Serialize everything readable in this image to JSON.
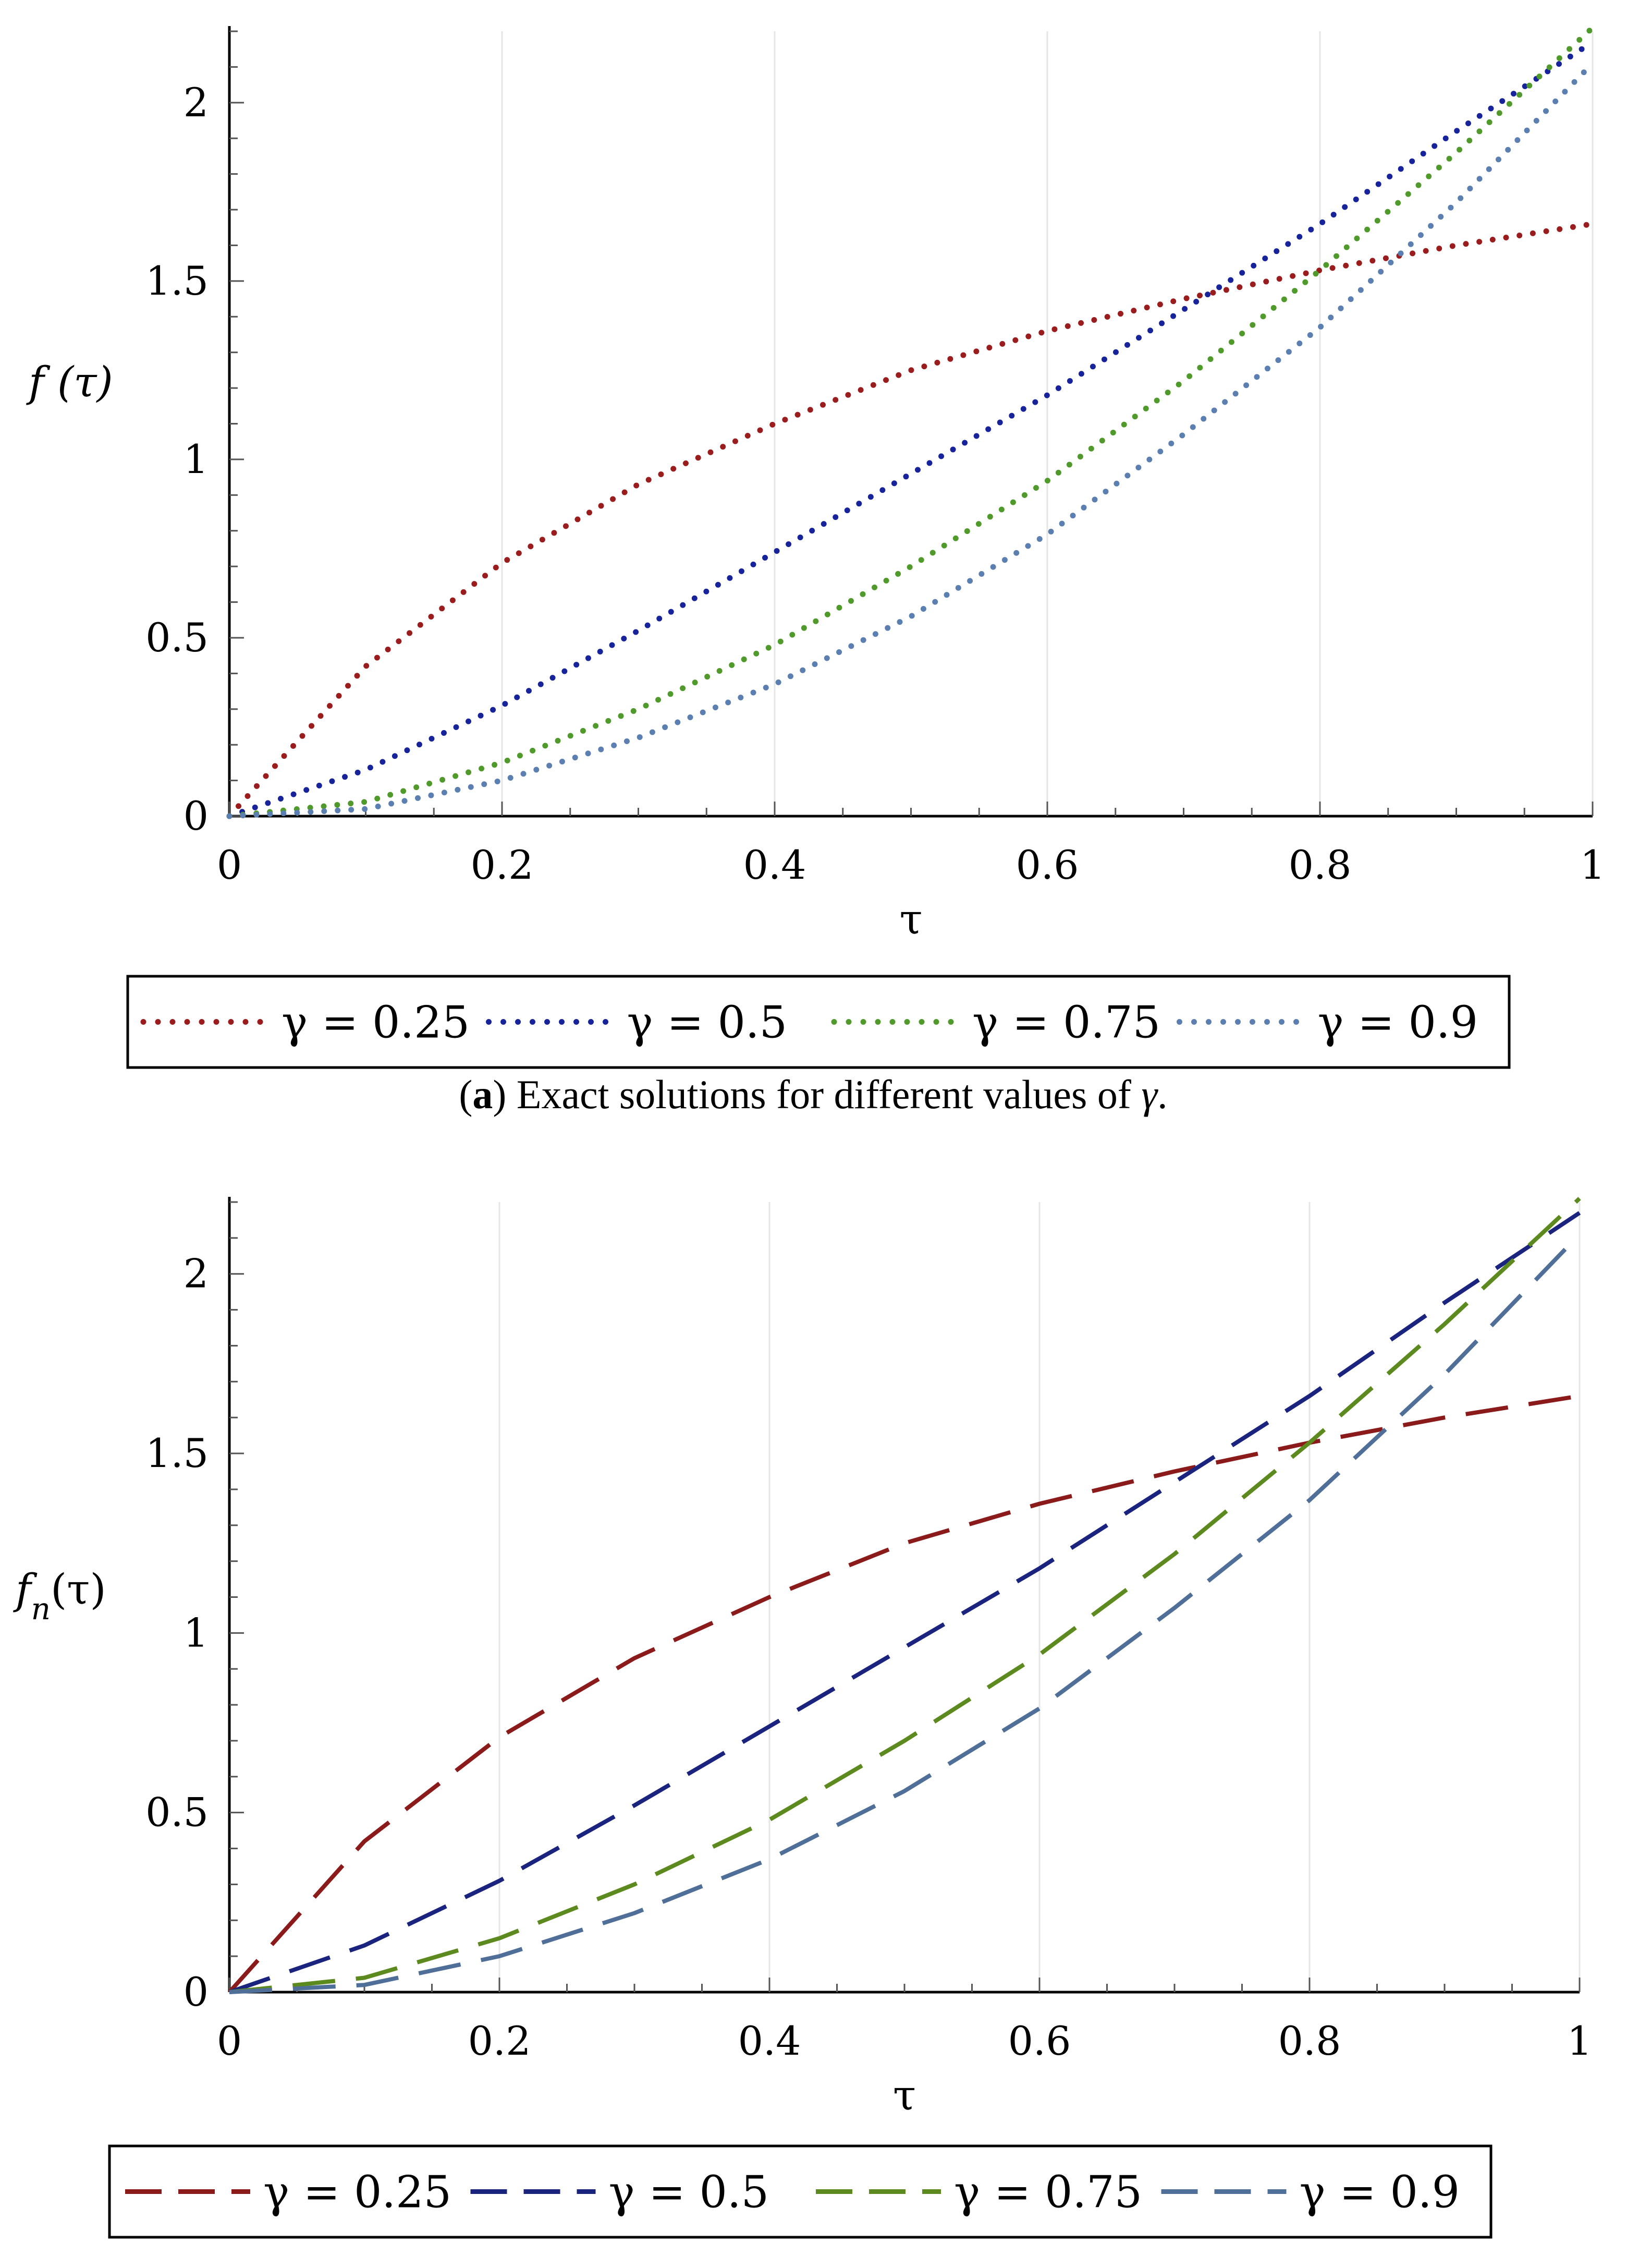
{
  "chart_data": [
    {
      "type": "line",
      "style": "dotted",
      "ylabel": "f (τ)",
      "xlabel": "τ",
      "xlim": [
        0,
        1
      ],
      "ylim": [
        0,
        2.2
      ],
      "x_ticks": [
        "0",
        "0.2",
        "0.4",
        "0.6",
        "0.8",
        "1"
      ],
      "y_ticks": [
        "0",
        "0.5",
        "1",
        "1.5",
        "2"
      ],
      "x": [
        0,
        0.1,
        0.2,
        0.3,
        0.4,
        0.5,
        0.6,
        0.7,
        0.8,
        0.9,
        1
      ],
      "series": [
        {
          "name": "γ = 0.25",
          "color": "#9b1c1c",
          "values": [
            0,
            0.42,
            0.71,
            0.93,
            1.1,
            1.25,
            1.36,
            1.45,
            1.53,
            1.6,
            1.66
          ]
        },
        {
          "name": "γ = 0.5",
          "color": "#17239b",
          "values": [
            0,
            0.13,
            0.31,
            0.52,
            0.74,
            0.96,
            1.18,
            1.42,
            1.66,
            1.92,
            2.17
          ]
        },
        {
          "name": "γ = 0.75",
          "color": "#4f9a2a",
          "values": [
            0,
            0.04,
            0.15,
            0.3,
            0.48,
            0.7,
            0.94,
            1.22,
            1.53,
            1.86,
            2.21
          ]
        },
        {
          "name": "γ = 0.9",
          "color": "#5a7fb0",
          "values": [
            0,
            0.02,
            0.1,
            0.22,
            0.37,
            0.56,
            0.79,
            1.07,
            1.37,
            1.72,
            2.11
          ]
        }
      ],
      "caption_label": "a",
      "caption_text": ") Exact solutions for different values of ",
      "caption_symbol": "γ",
      "caption_end": "."
    },
    {
      "type": "line",
      "style": "dashed",
      "ylabel": "f",
      "ylabel_sub": "n",
      "ylabel_arg": "(τ)",
      "xlabel": "τ",
      "xlim": [
        0,
        1
      ],
      "ylim": [
        0,
        2.2
      ],
      "x_ticks": [
        "0",
        "0.2",
        "0.4",
        "0.6",
        "0.8",
        "1"
      ],
      "y_ticks": [
        "0",
        "0.5",
        "1",
        "1.5",
        "2"
      ],
      "x": [
        0,
        0.1,
        0.2,
        0.3,
        0.4,
        0.5,
        0.6,
        0.7,
        0.8,
        0.9,
        1
      ],
      "series": [
        {
          "name": "γ = 0.25",
          "color": "#8b1a1a",
          "values": [
            0,
            0.42,
            0.71,
            0.93,
            1.1,
            1.25,
            1.36,
            1.45,
            1.53,
            1.6,
            1.66
          ]
        },
        {
          "name": "γ = 0.5",
          "color": "#1a237e",
          "values": [
            0,
            0.13,
            0.31,
            0.52,
            0.74,
            0.96,
            1.18,
            1.42,
            1.66,
            1.92,
            2.17
          ]
        },
        {
          "name": "γ = 0.75",
          "color": "#5c8a1e",
          "values": [
            0,
            0.04,
            0.15,
            0.3,
            0.48,
            0.7,
            0.94,
            1.22,
            1.53,
            1.86,
            2.21
          ]
        },
        {
          "name": "γ = 0.9",
          "color": "#4f6f99",
          "values": [
            0,
            0.02,
            0.1,
            0.22,
            0.37,
            0.56,
            0.79,
            1.07,
            1.37,
            1.72,
            2.11
          ]
        }
      ]
    }
  ]
}
